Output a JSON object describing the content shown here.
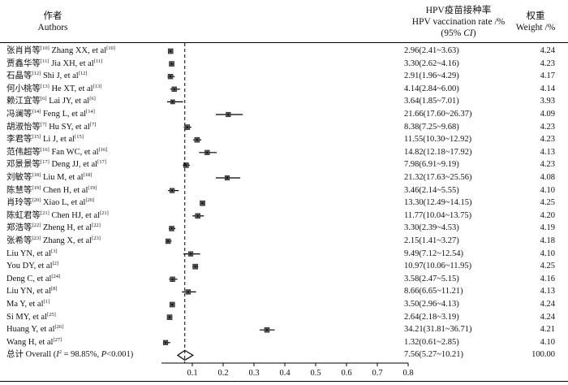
{
  "header": {
    "author_cn": "作者",
    "author_en": "Authors",
    "rate_cn": "HPV疫苗接种率",
    "rate_en": "HPV vaccination rate /%",
    "rate_ci": "(95% CI)",
    "weight_cn": "权重",
    "weight_en": "Weight /%"
  },
  "chart_data": {
    "type": "forest",
    "title": "",
    "xlabel": "",
    "ylabel": "",
    "xlim": [
      0,
      0.8
    ],
    "x_ticks": [
      "0.1",
      "0.2",
      "0.3",
      "0.4",
      "0.5",
      "0.6",
      "0.7",
      "0.8"
    ],
    "reference_line": 0.0756,
    "studies": [
      {
        "cn": "张肖肖等",
        "cn_ref": "[10]",
        "en": "Zhang XX, et al",
        "en_ref": "[10]",
        "est": 0.0296,
        "lo": 0.0241,
        "hi": 0.0363,
        "rate_text": "2.96(2.41~3.63)",
        "weight_text": "4.24",
        "weight": 4.24
      },
      {
        "cn": "贾鑫华等",
        "cn_ref": "[11]",
        "en": "Jia XH, et al",
        "en_ref": "[11]",
        "est": 0.033,
        "lo": 0.0262,
        "hi": 0.0416,
        "rate_text": "3.30(2.62~4.16)",
        "weight_text": "4.23",
        "weight": 4.23
      },
      {
        "cn": "石晶等",
        "cn_ref": "[12]",
        "en": "Shi J, et al",
        "en_ref": "[12]",
        "est": 0.0291,
        "lo": 0.0196,
        "hi": 0.0429,
        "rate_text": "2.91(1.96~4.29)",
        "weight_text": "4.17",
        "weight": 4.17
      },
      {
        "cn": "何小桃等",
        "cn_ref": "[13]",
        "en": "He XT, et al",
        "en_ref": "[13]",
        "est": 0.0414,
        "lo": 0.0284,
        "hi": 0.06,
        "rate_text": "4.14(2.84~6.00)",
        "weight_text": "4.14",
        "weight": 4.14
      },
      {
        "cn": "赖江宜等",
        "cn_ref": "[6]",
        "en": "Lai JY, et al",
        "en_ref": "[6]",
        "est": 0.0364,
        "lo": 0.0185,
        "hi": 0.0701,
        "rate_text": "3.64(1.85~7.01)",
        "weight_text": "3.93",
        "weight": 3.93
      },
      {
        "cn": "冯澜等",
        "cn_ref": "[14]",
        "en": "Feng L, et al",
        "en_ref": "[14]",
        "est": 0.2166,
        "lo": 0.176,
        "hi": 0.2637,
        "rate_text": "21.66(17.60~26.37)",
        "weight_text": "4.09",
        "weight": 4.09
      },
      {
        "cn": "胡淑怡等",
        "cn_ref": "[7]",
        "en": "Hu SY, et al",
        "en_ref": "[7]",
        "est": 0.0838,
        "lo": 0.0725,
        "hi": 0.0968,
        "rate_text": "8.38(7.25~9.68)",
        "weight_text": "4.23",
        "weight": 4.23
      },
      {
        "cn": "李君等",
        "cn_ref": "[15]",
        "en": "Li J, et al",
        "en_ref": "[15]",
        "est": 0.1155,
        "lo": 0.103,
        "hi": 0.1292,
        "rate_text": "11.55(10.30~12.92)",
        "weight_text": "4.23",
        "weight": 4.23
      },
      {
        "cn": "范伟超等",
        "cn_ref": "[16]",
        "en": "Fan WC, et al",
        "en_ref": "[16]",
        "est": 0.1482,
        "lo": 0.1218,
        "hi": 0.1792,
        "rate_text": "14.82(12.18~17.92)",
        "weight_text": "4.13",
        "weight": 4.13
      },
      {
        "cn": "邓景景等",
        "cn_ref": "[17]",
        "en": "Deng JJ, et al",
        "en_ref": "[17]",
        "est": 0.0798,
        "lo": 0.0691,
        "hi": 0.0919,
        "rate_text": "7.98(6.91~9.19)",
        "weight_text": "4.23",
        "weight": 4.23
      },
      {
        "cn": "刘敏等",
        "cn_ref": "[18]",
        "en": "Liu M, et al",
        "en_ref": "[18]",
        "est": 0.2132,
        "lo": 0.1763,
        "hi": 0.2556,
        "rate_text": "21.32(17.63~25.56)",
        "weight_text": "4.08",
        "weight": 4.08
      },
      {
        "cn": "陈慧等",
        "cn_ref": "[19]",
        "en": "Chen H, et al",
        "en_ref": "[19]",
        "est": 0.0346,
        "lo": 0.0214,
        "hi": 0.0555,
        "rate_text": "3.46(2.14~5.55)",
        "weight_text": "4.10",
        "weight": 4.1
      },
      {
        "cn": "肖玲等",
        "cn_ref": "[20]",
        "en": "Xiao L, et al",
        "en_ref": "[20]",
        "est": 0.133,
        "lo": 0.1249,
        "hi": 0.1415,
        "rate_text": "13.30(12.49~14.15)",
        "weight_text": "4.25",
        "weight": 4.25
      },
      {
        "cn": "陈虹君等",
        "cn_ref": "[21]",
        "en": "Chen HJ, et al",
        "en_ref": "[21]",
        "est": 0.1177,
        "lo": 0.1004,
        "hi": 0.1375,
        "rate_text": "11.77(10.04~13.75)",
        "weight_text": "4.20",
        "weight": 4.2
      },
      {
        "cn": "郑浩等",
        "cn_ref": "[22]",
        "en": "Zheng H, et al",
        "en_ref": "[22]",
        "est": 0.033,
        "lo": 0.0239,
        "hi": 0.0453,
        "rate_text": "3.30(2.39~4.53)",
        "weight_text": "4.19",
        "weight": 4.19
      },
      {
        "cn": "张希等",
        "cn_ref": "[23]",
        "en": "Zhang X, et al",
        "en_ref": "[23]",
        "est": 0.0215,
        "lo": 0.0141,
        "hi": 0.0327,
        "rate_text": "2.15(1.41~3.27)",
        "weight_text": "4.18",
        "weight": 4.18
      },
      {
        "cn": "",
        "cn_ref": "",
        "en": "Liu YN, et al",
        "en_ref": "[3]",
        "est": 0.0949,
        "lo": 0.0712,
        "hi": 0.1254,
        "rate_text": "9.49(7.12~12.54)",
        "weight_text": "4.10",
        "weight": 4.1
      },
      {
        "cn": "",
        "cn_ref": "",
        "en": "You DY, et al",
        "en_ref": "[2]",
        "est": 0.1097,
        "lo": 0.1006,
        "hi": 0.1195,
        "rate_text": "10.97(10.06~11.95)",
        "weight_text": "4.25",
        "weight": 4.25
      },
      {
        "cn": "",
        "cn_ref": "",
        "en": "Deng C, et al",
        "en_ref": "[24]",
        "est": 0.0358,
        "lo": 0.0247,
        "hi": 0.0515,
        "rate_text": "3.58(2.47~5.15)",
        "weight_text": "4.16",
        "weight": 4.16
      },
      {
        "cn": "",
        "cn_ref": "",
        "en": "Liu YN, et al",
        "en_ref": "[8]",
        "est": 0.0866,
        "lo": 0.0665,
        "hi": 0.1121,
        "rate_text": "8.66(6.65~11.21)",
        "weight_text": "4.13",
        "weight": 4.13
      },
      {
        "cn": "",
        "cn_ref": "",
        "en": "Ma Y, et al",
        "en_ref": "[1]",
        "est": 0.035,
        "lo": 0.0296,
        "hi": 0.0413,
        "rate_text": "3.50(2.96~4.13)",
        "weight_text": "4.24",
        "weight": 4.24
      },
      {
        "cn": "",
        "cn_ref": "",
        "en": "Si MY, et al",
        "en_ref": "[25]",
        "est": 0.0264,
        "lo": 0.0218,
        "hi": 0.0319,
        "rate_text": "2.64(2.18~3.19)",
        "weight_text": "4.24",
        "weight": 4.24
      },
      {
        "cn": "",
        "cn_ref": "",
        "en": "Huang Y, et al",
        "en_ref": "[26]",
        "est": 0.3421,
        "lo": 0.3181,
        "hi": 0.3671,
        "rate_text": "34.21(31.81~36.71)",
        "weight_text": "4.21",
        "weight": 4.21
      },
      {
        "cn": "",
        "cn_ref": "",
        "en": "Wang H, et al",
        "en_ref": "[27]",
        "est": 0.0132,
        "lo": 0.0061,
        "hi": 0.0285,
        "rate_text": "1.32(0.61~2.85)",
        "weight_text": "4.10",
        "weight": 4.1
      }
    ],
    "overall": {
      "cn": "总计",
      "en_prefix": "Overall (",
      "i2_symbol": "I",
      "i2_sup": "2",
      "i2_text": " = 98.85%, ",
      "p_symbol": "P",
      "p_text": "<0.001)",
      "est": 0.0756,
      "lo": 0.0527,
      "hi": 0.1021,
      "rate_text": "7.56(5.27~10.21)",
      "weight_text": "100.00"
    }
  }
}
